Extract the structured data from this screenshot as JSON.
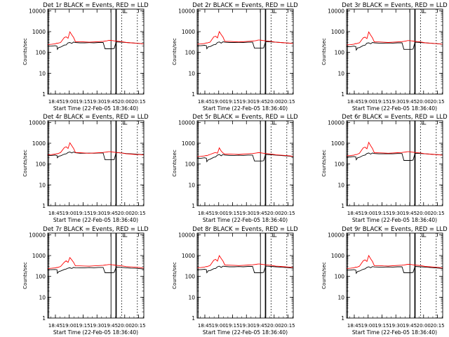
{
  "figure": {
    "background": "#ffffff",
    "axis_color": "#000000",
    "events_color": "#000000",
    "lld_color": "#ff0000",
    "ylabel": "Counts/sec",
    "xlabel": "Start Time (22-Feb-05 18:36:40)",
    "x_tick_labels": [
      "18:45",
      "19:00",
      "19:15",
      "19:30",
      "19:45",
      "20:00",
      "20:15"
    ],
    "y_tick_labels": [
      "1",
      "10",
      "100",
      "1000",
      "10000"
    ]
  },
  "chart_data": [
    {
      "type": "line",
      "title": "Det 1r BLACK = Events, RED = LLD",
      "x_minutes_from_start": [
        0,
        4,
        8,
        10,
        10.5,
        12,
        14,
        18,
        20,
        22,
        24,
        26,
        28,
        30,
        35,
        40,
        45,
        50,
        55,
        60,
        62,
        64,
        66,
        68,
        70,
        72,
        74,
        80,
        85,
        90,
        95,
        100,
        104
      ],
      "series": [
        {
          "name": "Events",
          "color": "#000000",
          "values": [
            200,
            200,
            210,
            200,
            140,
            175,
            180,
            225,
            230,
            290,
            300,
            270,
            315,
            300,
            290,
            290,
            295,
            290,
            300,
            300,
            150,
            150,
            150,
            150,
            150,
            155,
            320,
            310,
            300,
            290,
            280,
            270,
            255
          ]
        },
        {
          "name": "LLD",
          "color": "#ff0000",
          "values": [
            240,
            245,
            260,
            280,
            270,
            285,
            300,
            520,
            560,
            480,
            980,
            700,
            520,
            330,
            330,
            320,
            310,
            320,
            330,
            340,
            350,
            360,
            380,
            380,
            370,
            360,
            350,
            330,
            300,
            290,
            280,
            270,
            255
          ]
        }
      ],
      "xlim": [
        "18:36:40",
        "20:20:40"
      ],
      "ylim": [
        1,
        12000
      ],
      "yscale": "log",
      "grid": false
    },
    {
      "type": "line",
      "title": "Det 2r BLACK = Events, RED = LLD",
      "x_minutes_from_start": [
        0,
        4,
        8,
        10,
        10.5,
        12,
        14,
        18,
        20,
        22,
        24,
        26,
        28,
        30,
        35,
        40,
        45,
        50,
        55,
        60,
        62,
        64,
        66,
        68,
        70,
        72,
        74,
        80,
        85,
        90,
        95,
        100,
        104
      ],
      "series": [
        {
          "name": "Events",
          "color": "#000000",
          "values": [
            210,
            210,
            220,
            210,
            150,
            185,
            190,
            235,
            240,
            300,
            320,
            280,
            325,
            310,
            300,
            300,
            305,
            300,
            310,
            310,
            160,
            160,
            160,
            160,
            160,
            165,
            330,
            320,
            310,
            300,
            290,
            280,
            265
          ]
        },
        {
          "name": "LLD",
          "color": "#ff0000",
          "values": [
            250,
            255,
            270,
            290,
            280,
            295,
            310,
            560,
            600,
            500,
            1000,
            720,
            540,
            340,
            340,
            330,
            320,
            330,
            340,
            350,
            360,
            370,
            390,
            390,
            380,
            370,
            360,
            340,
            310,
            300,
            290,
            280,
            265
          ]
        }
      ],
      "xlim": [
        "18:36:40",
        "20:20:40"
      ],
      "ylim": [
        1,
        12000
      ],
      "yscale": "log",
      "grid": false
    },
    {
      "type": "line",
      "title": "Det 3r BLACK = Events, RED = LLD",
      "x_minutes_from_start": [
        0,
        4,
        8,
        10,
        10.5,
        12,
        14,
        18,
        20,
        22,
        24,
        26,
        28,
        30,
        35,
        40,
        45,
        50,
        55,
        60,
        62,
        64,
        66,
        68,
        70,
        72,
        74,
        80,
        85,
        90,
        95,
        100,
        104
      ],
      "series": [
        {
          "name": "Events",
          "color": "#000000",
          "values": [
            190,
            190,
            200,
            190,
            130,
            165,
            170,
            215,
            220,
            280,
            290,
            260,
            300,
            290,
            280,
            280,
            285,
            280,
            290,
            290,
            140,
            140,
            140,
            140,
            140,
            145,
            310,
            300,
            290,
            280,
            270,
            260,
            245
          ]
        },
        {
          "name": "LLD",
          "color": "#ff0000",
          "values": [
            230,
            235,
            250,
            270,
            260,
            275,
            290,
            500,
            540,
            460,
            960,
            680,
            500,
            320,
            320,
            310,
            300,
            310,
            320,
            330,
            340,
            350,
            370,
            370,
            360,
            350,
            340,
            320,
            290,
            280,
            270,
            260,
            245
          ]
        }
      ],
      "xlim": [
        "18:36:40",
        "20:20:40"
      ],
      "ylim": [
        1,
        12000
      ],
      "yscale": "log",
      "grid": false
    },
    {
      "type": "line",
      "title": "Det 4r BLACK = Events, RED = LLD",
      "x_minutes_from_start": [
        0,
        4,
        8,
        10,
        10.5,
        12,
        14,
        18,
        20,
        22,
        24,
        26,
        28,
        30,
        35,
        40,
        45,
        50,
        55,
        60,
        62,
        64,
        66,
        68,
        70,
        72,
        74,
        80,
        85,
        90,
        95,
        100,
        104
      ],
      "series": [
        {
          "name": "Events",
          "color": "#000000",
          "values": [
            260,
            260,
            270,
            260,
            200,
            240,
            250,
            300,
            310,
            360,
            380,
            340,
            380,
            350,
            330,
            330,
            335,
            330,
            340,
            340,
            160,
            160,
            160,
            160,
            160,
            165,
            360,
            340,
            320,
            310,
            300,
            290,
            275
          ]
        },
        {
          "name": "LLD",
          "color": "#ff0000",
          "values": [
            280,
            285,
            300,
            320,
            310,
            330,
            360,
            620,
            680,
            560,
            1050,
            760,
            560,
            360,
            350,
            340,
            330,
            340,
            350,
            360,
            370,
            380,
            390,
            390,
            380,
            370,
            360,
            340,
            310,
            300,
            290,
            285,
            275
          ]
        }
      ],
      "xlim": [
        "18:36:40",
        "20:20:40"
      ],
      "ylim": [
        1,
        12000
      ],
      "yscale": "log",
      "grid": false
    },
    {
      "type": "line",
      "title": "Det 5r BLACK = Events, RED = LLD",
      "x_minutes_from_start": [
        0,
        4,
        8,
        10,
        10.5,
        12,
        14,
        18,
        20,
        22,
        24,
        26,
        28,
        30,
        35,
        40,
        45,
        50,
        55,
        60,
        62,
        64,
        66,
        68,
        70,
        72,
        74,
        80,
        85,
        90,
        95,
        100,
        104
      ],
      "series": [
        {
          "name": "Events",
          "color": "#000000",
          "values": [
            190,
            190,
            200,
            190,
            130,
            160,
            170,
            210,
            220,
            270,
            290,
            250,
            290,
            270,
            260,
            260,
            265,
            260,
            270,
            270,
            140,
            140,
            140,
            140,
            140,
            145,
            290,
            280,
            270,
            260,
            250,
            240,
            225
          ]
        },
        {
          "name": "LLD",
          "color": "#ff0000",
          "values": [
            230,
            235,
            245,
            260,
            250,
            270,
            290,
            340,
            360,
            330,
            600,
            420,
            340,
            300,
            300,
            295,
            290,
            300,
            310,
            320,
            330,
            340,
            350,
            350,
            340,
            330,
            320,
            300,
            280,
            270,
            260,
            250,
            235
          ]
        }
      ],
      "xlim": [
        "18:36:40",
        "20:20:40"
      ],
      "ylim": [
        1,
        12000
      ],
      "yscale": "log",
      "grid": false
    },
    {
      "type": "line",
      "title": "Det 6r BLACK = Events, RED = LLD",
      "x_minutes_from_start": [
        0,
        4,
        8,
        10,
        10.5,
        12,
        14,
        18,
        20,
        22,
        24,
        26,
        28,
        30,
        35,
        40,
        45,
        50,
        55,
        60,
        62,
        64,
        66,
        68,
        70,
        72,
        74,
        80,
        85,
        90,
        95,
        100,
        104
      ],
      "series": [
        {
          "name": "Events",
          "color": "#000000",
          "values": [
            220,
            220,
            230,
            220,
            160,
            200,
            210,
            260,
            270,
            320,
            340,
            300,
            340,
            320,
            310,
            310,
            315,
            310,
            320,
            320,
            150,
            150,
            150,
            150,
            150,
            155,
            330,
            320,
            310,
            300,
            290,
            280,
            265
          ]
        },
        {
          "name": "LLD",
          "color": "#ff0000",
          "values": [
            250,
            255,
            270,
            290,
            280,
            300,
            330,
            600,
            650,
            540,
            1100,
            760,
            560,
            350,
            345,
            340,
            330,
            340,
            350,
            360,
            370,
            380,
            390,
            390,
            380,
            370,
            360,
            340,
            310,
            300,
            290,
            280,
            265
          ]
        }
      ],
      "xlim": [
        "18:36:40",
        "20:20:40"
      ],
      "ylim": [
        1,
        12000
      ],
      "yscale": "log",
      "grid": false
    },
    {
      "type": "line",
      "title": "Det 7r BLACK = Events, RED = LLD",
      "x_minutes_from_start": [
        0,
        4,
        8,
        10,
        10.5,
        12,
        14,
        18,
        20,
        22,
        24,
        26,
        28,
        30,
        35,
        40,
        45,
        50,
        55,
        60,
        62,
        64,
        66,
        68,
        70,
        72,
        74,
        80,
        85,
        90,
        95,
        100,
        104
      ],
      "series": [
        {
          "name": "Events",
          "color": "#000000",
          "values": [
            210,
            210,
            215,
            210,
            140,
            170,
            180,
            215,
            225,
            250,
            260,
            240,
            270,
            260,
            255,
            260,
            265,
            260,
            270,
            270,
            150,
            150,
            150,
            150,
            150,
            155,
            280,
            270,
            260,
            250,
            245,
            235,
            225
          ]
        },
        {
          "name": "LLD",
          "color": "#ff0000",
          "values": [
            240,
            245,
            255,
            270,
            265,
            280,
            300,
            480,
            560,
            470,
            800,
            620,
            470,
            320,
            320,
            315,
            310,
            320,
            330,
            340,
            350,
            360,
            370,
            370,
            360,
            350,
            340,
            320,
            295,
            285,
            275,
            265,
            250
          ]
        }
      ],
      "xlim": [
        "18:36:40",
        "20:20:40"
      ],
      "ylim": [
        1,
        12000
      ],
      "yscale": "log",
      "grid": false
    },
    {
      "type": "line",
      "title": "Det 8r BLACK = Events, RED = LLD",
      "x_minutes_from_start": [
        0,
        4,
        8,
        10,
        10.5,
        12,
        14,
        18,
        20,
        22,
        24,
        26,
        28,
        30,
        35,
        40,
        45,
        50,
        55,
        60,
        62,
        64,
        66,
        68,
        70,
        72,
        74,
        80,
        85,
        90,
        95,
        100,
        104
      ],
      "series": [
        {
          "name": "Events",
          "color": "#000000",
          "values": [
            210,
            210,
            220,
            210,
            150,
            185,
            190,
            235,
            240,
            290,
            310,
            270,
            310,
            300,
            290,
            290,
            295,
            290,
            300,
            300,
            150,
            150,
            150,
            150,
            150,
            155,
            310,
            300,
            290,
            280,
            270,
            260,
            245
          ]
        },
        {
          "name": "LLD",
          "color": "#ff0000",
          "values": [
            260,
            265,
            280,
            300,
            290,
            310,
            330,
            600,
            660,
            540,
            1000,
            720,
            540,
            350,
            345,
            340,
            330,
            340,
            350,
            360,
            370,
            380,
            390,
            390,
            380,
            370,
            360,
            340,
            310,
            300,
            290,
            280,
            265
          ]
        }
      ],
      "xlim": [
        "18:36:40",
        "20:20:40"
      ],
      "ylim": [
        1,
        12000
      ],
      "yscale": "log",
      "grid": false
    },
    {
      "type": "line",
      "title": "Det 9r BLACK = Events, RED = LLD",
      "x_minutes_from_start": [
        0,
        4,
        8,
        10,
        10.5,
        12,
        14,
        18,
        20,
        22,
        24,
        26,
        28,
        30,
        35,
        40,
        45,
        50,
        55,
        60,
        62,
        64,
        66,
        68,
        70,
        72,
        74,
        80,
        85,
        90,
        95,
        100,
        104
      ],
      "series": [
        {
          "name": "Events",
          "color": "#000000",
          "values": [
            200,
            200,
            210,
            200,
            140,
            175,
            180,
            220,
            230,
            270,
            290,
            260,
            295,
            285,
            280,
            280,
            285,
            280,
            290,
            290,
            150,
            150,
            150,
            150,
            150,
            155,
            300,
            290,
            280,
            270,
            260,
            250,
            240
          ]
        },
        {
          "name": "LLD",
          "color": "#ff0000",
          "values": [
            240,
            245,
            260,
            280,
            270,
            285,
            310,
            560,
            620,
            520,
            1000,
            700,
            520,
            330,
            330,
            320,
            315,
            325,
            335,
            345,
            355,
            365,
            380,
            380,
            370,
            360,
            350,
            330,
            300,
            290,
            280,
            270,
            255
          ]
        }
      ],
      "xlim": [
        "18:36:40",
        "20:20:40"
      ],
      "ylim": [
        1,
        12000
      ],
      "yscale": "log",
      "grid": false
    }
  ]
}
